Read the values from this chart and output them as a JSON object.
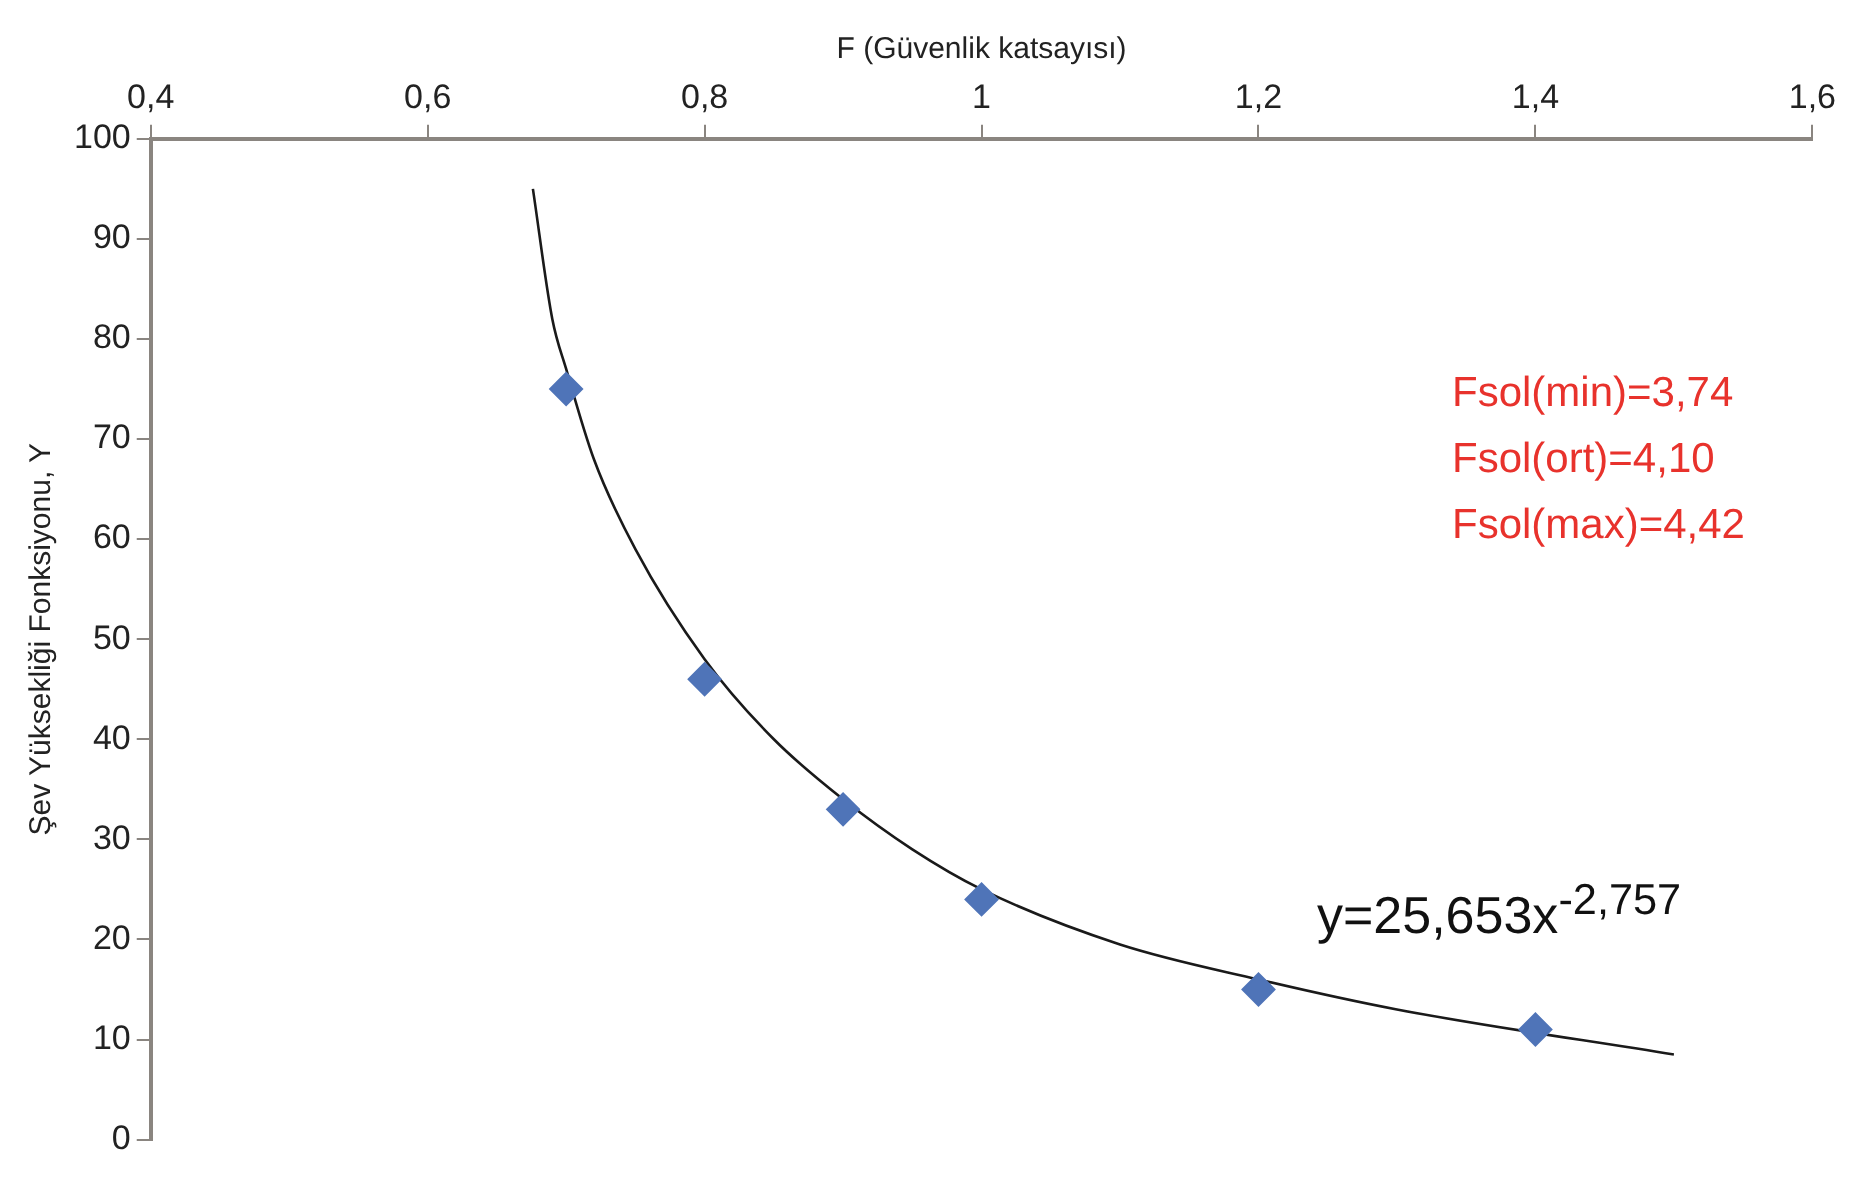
{
  "chart_data": {
    "type": "scatter",
    "xlabel": "F (Güvenlik katsayısı)",
    "ylabel": "Şev Yüksekliği Fonksiyonu, Y",
    "xlim": [
      0.4,
      1.6
    ],
    "xticks": [
      {
        "value": 0.4,
        "label": "0,4"
      },
      {
        "value": 0.6,
        "label": "0,6"
      },
      {
        "value": 0.8,
        "label": "0,8"
      },
      1,
      {
        "value": 1.2,
        "label": "1,2"
      },
      {
        "value": 1.4,
        "label": "1,4"
      },
      {
        "value": 1.6,
        "label": "1,6"
      }
    ],
    "ylim": [
      0,
      100
    ],
    "yticks": [
      0,
      10,
      20,
      30,
      40,
      50,
      60,
      70,
      80,
      90,
      100
    ],
    "grid": false,
    "legend": false,
    "series": [
      {
        "color": "#4f74b8",
        "marker": "diamond",
        "x": [
          0.7,
          0.8,
          0.9,
          1.0,
          1.2,
          1.4
        ],
        "values": [
          75,
          46,
          33,
          24,
          15,
          11
        ]
      },
      {
        "type": "line",
        "color": "#1a1a1a",
        "marker": "none",
        "line_style": "solid",
        "x": [
          0.676,
          0.69,
          0.7,
          0.72,
          0.75,
          0.8,
          0.85,
          0.9,
          0.95,
          1.0,
          1.1,
          1.2,
          1.3,
          1.5
        ],
        "values": [
          95,
          82,
          77,
          68,
          59,
          48,
          40,
          34,
          29,
          25,
          19.5,
          16,
          13,
          8.5
        ]
      }
    ],
    "annotations": [
      "Fsol(min)=3,74",
      "Fsol(ort)=4,10",
      "Fsol(max)=4,42",
      {
        "text": "y=25,653x$^{-2,757}$",
        "x": 1.3,
        "y": 13
      }
    ]
  }
}
